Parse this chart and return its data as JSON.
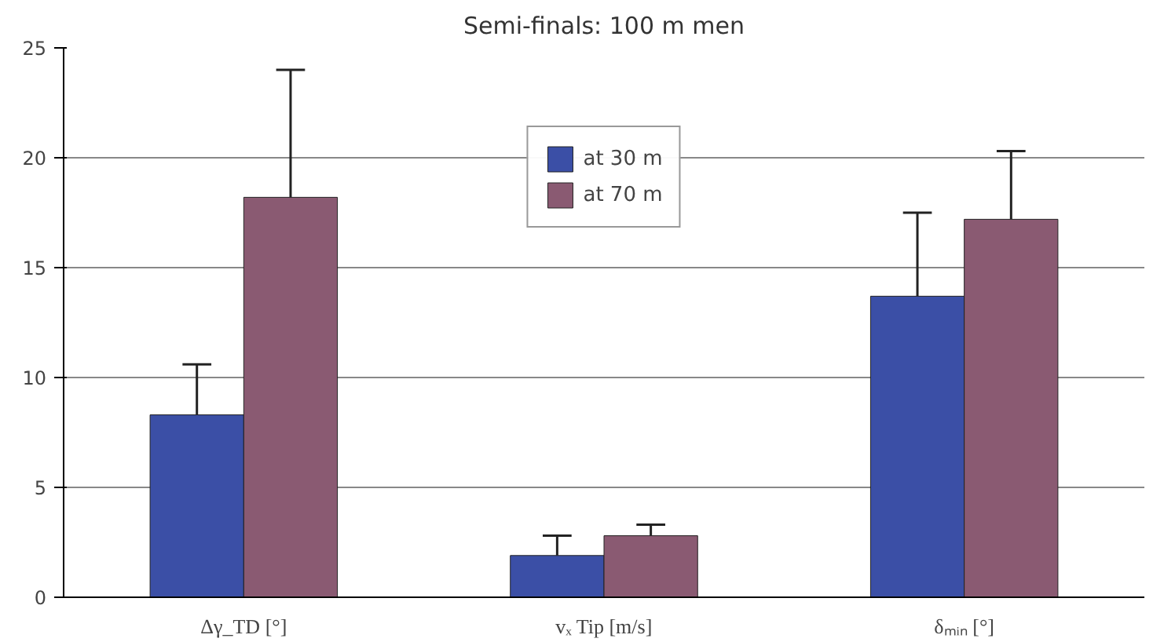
{
  "chart_data": {
    "type": "bar",
    "title": "Semi-finals: 100 m men",
    "categories": [
      "Δγ_TD [°]",
      "vₓ Tip [m/s]",
      "δₘᵢₙ [°]"
    ],
    "series": [
      {
        "name": "at 30 m",
        "color": "#3b4fa6",
        "values": [
          8.3,
          1.9,
          13.7
        ],
        "errors": [
          [
            8.3,
            10.6
          ],
          [
            1.9,
            2.8
          ],
          [
            13.7,
            17.5
          ]
        ]
      },
      {
        "name": "at 70 m",
        "color": "#8a5a72",
        "values": [
          18.2,
          2.8,
          17.2
        ],
        "errors": [
          [
            18.2,
            24.0
          ],
          [
            2.8,
            3.3
          ],
          [
            17.2,
            20.3
          ]
        ]
      }
    ],
    "ylim": [
      0,
      25
    ],
    "yticks": [
      0,
      5,
      10,
      15,
      20,
      25
    ],
    "grid": "y",
    "legend": "top"
  }
}
